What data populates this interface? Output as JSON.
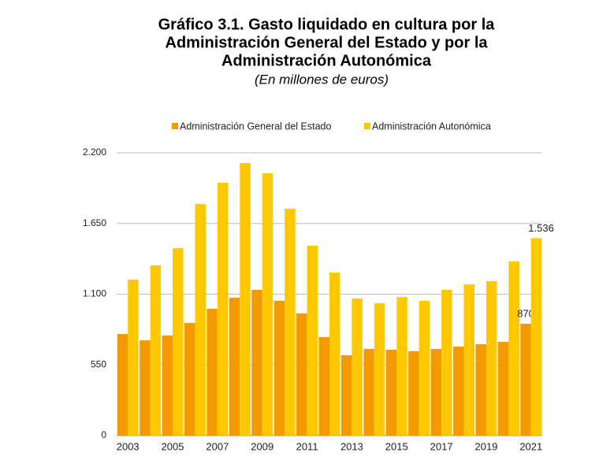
{
  "chart_data": {
    "type": "bar",
    "title": [
      "Gráfico 3.1. Gasto liquidado en cultura por la",
      "Administración General del Estado y por la",
      "Administración Autonómica"
    ],
    "subtitle": "(En millones de euros)",
    "categories": [
      "2003",
      null,
      "2005",
      null,
      "2007",
      null,
      "2009",
      null,
      "2011",
      null,
      "2013",
      null,
      "2015",
      null,
      "2017",
      null,
      "2019",
      null,
      "2021"
    ],
    "series": [
      {
        "name": "Administración General del Estado",
        "color": "#f39a00",
        "values": [
          790,
          741,
          778,
          876,
          987,
          1072,
          1134,
          1048,
          950,
          766,
          625,
          674,
          668,
          656,
          674,
          692,
          711,
          729,
          870
        ],
        "value_labels": [
          null,
          null,
          null,
          null,
          null,
          null,
          null,
          null,
          null,
          null,
          null,
          null,
          null,
          null,
          null,
          null,
          null,
          null,
          "870"
        ]
      },
      {
        "name": "Administración Autonómica",
        "color": "#ffc800",
        "values": [
          1213,
          1324,
          1458,
          1801,
          1967,
          2120,
          2040,
          1765,
          1477,
          1268,
          1066,
          1029,
          1078,
          1048,
          1134,
          1176,
          1201,
          1354,
          1536
        ],
        "value_labels": [
          null,
          null,
          null,
          null,
          null,
          null,
          null,
          null,
          null,
          null,
          null,
          null,
          null,
          null,
          null,
          null,
          null,
          null,
          "1.536"
        ]
      }
    ],
    "ylim": [
      0,
      2200
    ],
    "yticks": [
      0,
      550,
      {
        "value": 1100,
        "label": "1.100"
      },
      {
        "value": 1650,
        "label": "1.650"
      },
      {
        "value": 2200,
        "label": "2.200"
      }
    ],
    "grid": true
  }
}
